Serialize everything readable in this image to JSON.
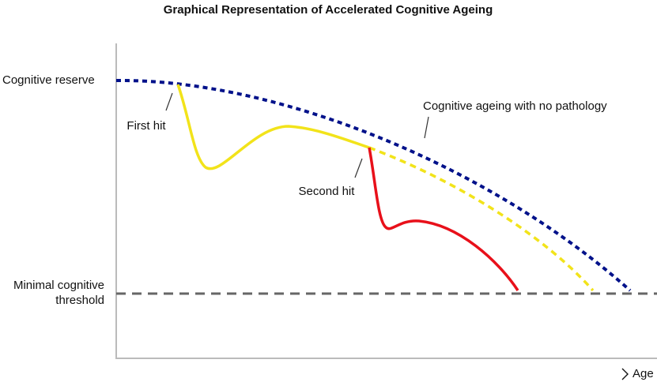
{
  "title": "Graphical Representation of Accelerated Cognitive Ageing",
  "y_labels": {
    "top": "Cognitive reserve",
    "threshold": [
      "Minimal cognitive",
      "threshold"
    ]
  },
  "x_label": "Age",
  "annotations": {
    "first_hit": "First hit",
    "second_hit": "Second hit",
    "no_pathology": "Cognitive ageing with no pathology"
  }
}
